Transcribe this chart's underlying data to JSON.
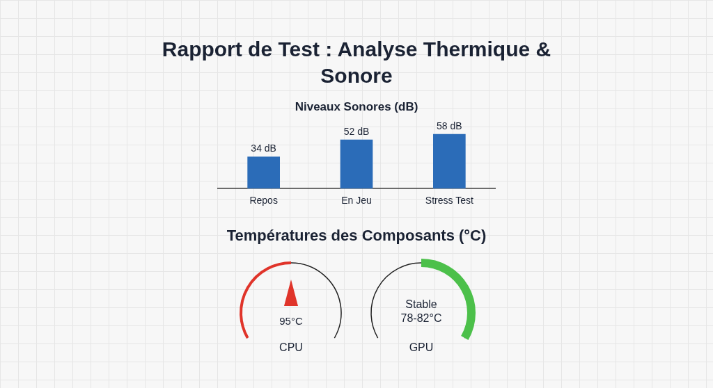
{
  "chart_data": [
    {
      "type": "bar",
      "title": "Rapport de Test : Analyse Thermique & Sonore",
      "subtitle": "Niveaux Sonores (dB)",
      "categories": [
        "Repos",
        "En Jeu",
        "Stress Test"
      ],
      "values": [
        34,
        52,
        58
      ],
      "value_labels": [
        "34 dB",
        "52 dB",
        "58 dB"
      ],
      "color": "#2b6cb8",
      "grid": false,
      "legend": false
    },
    {
      "type": "other",
      "title": "Températures des Composants (°C)",
      "annotations": [
        "95°C",
        "CPU",
        "Stable\n78-82°C",
        "GPU"
      ]
    }
  ]
}
